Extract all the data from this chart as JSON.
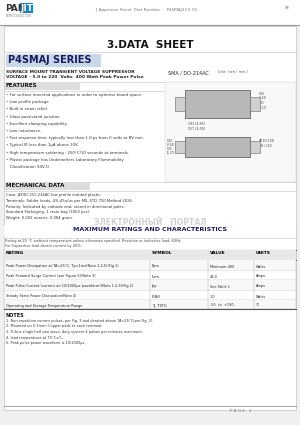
{
  "bg_color": "#f0f0f0",
  "page_bg": "#ffffff",
  "title": "3.DATA  SHEET",
  "series_title": "P4SMAJ SERIES",
  "series_bg": "#c8d8e8",
  "subtitle1": "SURFACE MOUNT TRANSIENT VOLTAGE SUPPRESSOR",
  "subtitle2": "VOLTAGE - 5.0 to 220  Volts  400 Watt Peak Power Pulse",
  "package_label": "SMA / DO-214AC",
  "unit_label": "Unit: inch ( mm )",
  "features_title": "FEATURES",
  "features": [
    "• For surface mounted applications in order to optimise board space.",
    "• Low profile package.",
    "• Built-in strain relief.",
    "• Glass passivated junction.",
    "• Excellent clamping capability.",
    "• Low inductance.",
    "• Fast response time: typically less than 1.0 ps from 0 volts to BV min.",
    "• Typical IR less than 1μA above 10V.",
    "• High temperature soldering : 250°C/10 seconds at terminals.",
    "• Plastic package has Underwriters Laboratory Flammability",
    "   Classification 94V-O."
  ],
  "mech_title": "MECHANICAL DATA",
  "mech_lines": [
    "Case: JEDEC DO-214AC low profile molded plastic.",
    "Terminals: Solder leads, 4%-45u/us per MIL-STD-750 Method 2026.",
    "Polarity: Indicated by cathode end, stored in directional poles.",
    "Standard Packaging: 1 resin bag (1000 pcs).",
    "Weight: 0.002 ounces, 0.064 gram."
  ],
  "max_ratings_title": "MAXIMUM RATINGS AND CHARACTERISTICS",
  "ratings_note1": "Rating at 25 °C ambient temperature unless otherwise specified. Resistive or inductive load, 60Hz.",
  "ratings_note2": "For Capacitive load derate current by 20%.",
  "table_headers": [
    "RATING",
    "SYMBOL",
    "VALUE",
    "UNITS"
  ],
  "table_rows": [
    [
      "Peak Power Dissipation at TA=25°C, Tp=1ms(Note 1,2,5)(Fig.1)",
      "Ppm",
      "Minimum 400",
      "Watts"
    ],
    [
      "Peak Forward Surge Current (per Figure 5)(Note 3)",
      "Itsm",
      "43.0",
      "Amps"
    ],
    [
      "Peak Pulse Current (current on 10/1000μs waveform)(Note 1,2,5)(Fig.2)",
      "Ipp",
      "See Table 1",
      "Amps"
    ],
    [
      "Steady State Power Dissipation(Note 4)",
      "P(AV)",
      "1.0",
      "Watts"
    ],
    [
      "Operating and Storage Temperature Range",
      "TJ, TSTG",
      "-55  to  +150",
      "°C"
    ]
  ],
  "notes_title": "NOTES",
  "notes": [
    "1. Non-repetitive current pulses, per Fig. 3 and derated above TA=25°C(per Fig. 2).",
    "2. Mounted on 5.1mm² Copper pads to each terminal.",
    "3. 8.3ms single half sine wave, duty system 4 pulses per minutes maximum.",
    "4. lead temperature at 75°C±T₂.",
    "5. Peak pulse power waveform is 10/1000μs."
  ],
  "page_label": "P A G E   3",
  "approval_text": "J  Approven Sheet  Part Number :   P4SMAJ33 E 01",
  "panjit_blue": "#2080c0",
  "watermark_text": "ЭЛЕКТРОННЫЙ   ПОРТАЛ"
}
